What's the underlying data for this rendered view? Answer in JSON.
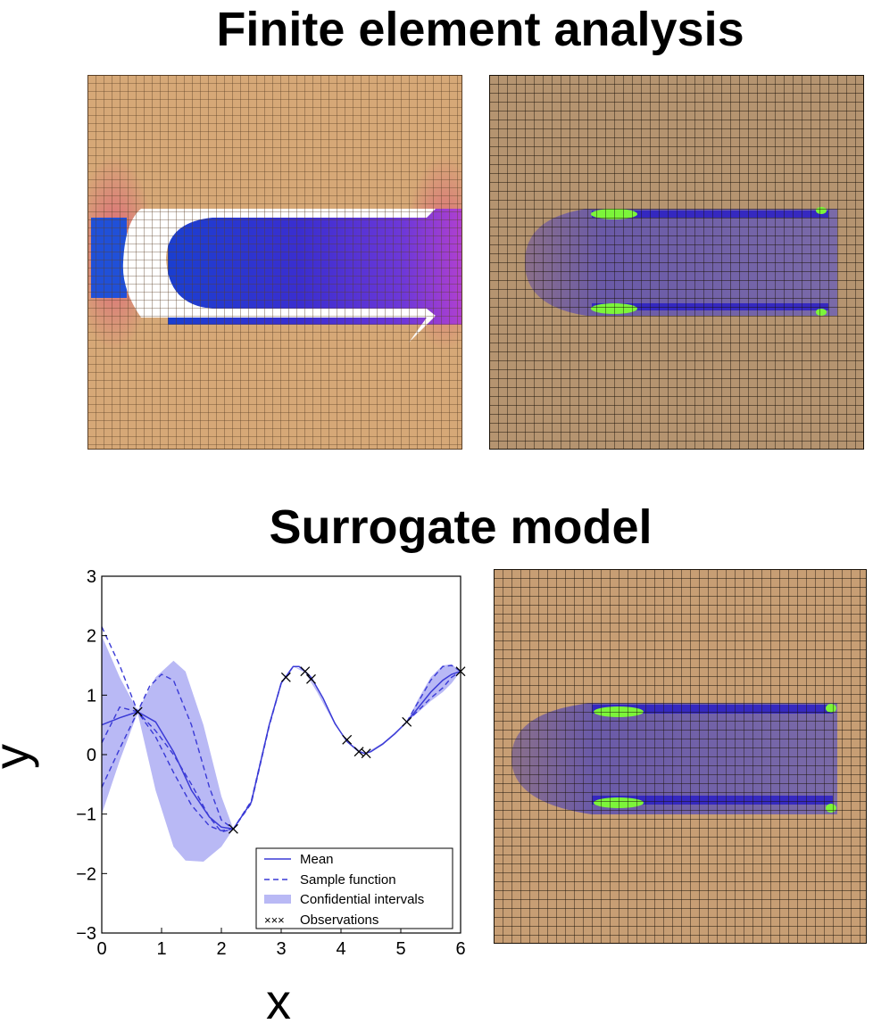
{
  "titles": {
    "fea": "Finite element analysis",
    "surrogate": "Surrogate model"
  },
  "panels": {
    "mesh_base_color": "#d6a877",
    "mesh_line_color": "#5a3f26",
    "stress_low_color": "#2a1fc4",
    "stress_mid_color": "#a43fd8",
    "stress_edge_color": "#e0407a",
    "hotspot_color": "#7cf53a"
  },
  "chart_data": {
    "type": "line",
    "xlabel": "x",
    "ylabel": "y",
    "xlim": [
      0,
      6
    ],
    "ylim": [
      -3,
      3
    ],
    "xticks": [
      "0",
      "1",
      "2",
      "3",
      "4",
      "5",
      "6"
    ],
    "yticks": [
      "−3",
      "−2",
      "−1",
      "0",
      "1",
      "2",
      "3"
    ],
    "legend": {
      "position": "bottom-right",
      "entries": [
        "Mean",
        "Sample function",
        "Confidential intervals",
        "Observations"
      ]
    },
    "colors": {
      "mean": "#3a3ad6",
      "sample": "#3a3ad6",
      "band": "#b9b9f5",
      "obs": "#000000"
    },
    "mean": {
      "x": [
        0,
        0.3,
        0.6,
        0.9,
        1.2,
        1.5,
        1.8,
        2.0,
        2.2,
        2.5,
        2.8,
        3.0,
        3.2,
        3.3,
        3.4,
        3.5,
        3.7,
        3.9,
        4.1,
        4.3,
        4.4,
        4.5,
        4.7,
        4.9,
        5.1,
        5.3,
        5.5,
        5.7,
        5.85,
        6.0
      ],
      "y": [
        0.5,
        0.62,
        0.72,
        0.55,
        0.05,
        -0.6,
        -1.05,
        -1.22,
        -1.25,
        -0.8,
        0.5,
        1.2,
        1.48,
        1.48,
        1.4,
        1.3,
        0.95,
        0.52,
        0.22,
        0.05,
        0.02,
        0.05,
        0.18,
        0.35,
        0.55,
        0.8,
        1.05,
        1.25,
        1.35,
        1.4
      ]
    },
    "band_upper": {
      "x": [
        0,
        0.3,
        0.6,
        0.9,
        1.2,
        1.4,
        1.7,
        2.0,
        2.2,
        2.5,
        2.8,
        3.0,
        3.2,
        3.4,
        3.6,
        3.9,
        4.1,
        4.4,
        4.7,
        5.1,
        5.3,
        5.5,
        5.7,
        5.85,
        6.0
      ],
      "y": [
        2.0,
        1.3,
        0.74,
        1.3,
        1.58,
        1.4,
        0.5,
        -0.7,
        -1.25,
        -0.78,
        0.52,
        1.2,
        1.48,
        1.42,
        1.1,
        0.55,
        0.22,
        0.02,
        0.2,
        0.55,
        0.95,
        1.3,
        1.5,
        1.52,
        1.4
      ]
    },
    "band_lower": {
      "x": [
        0,
        0.3,
        0.6,
        0.9,
        1.2,
        1.4,
        1.7,
        2.0,
        2.2,
        2.5,
        2.8,
        3.0,
        3.2,
        3.4,
        3.6,
        3.9,
        4.1,
        4.4,
        4.7,
        5.1,
        5.3,
        5.5,
        5.7,
        5.85,
        6.0
      ],
      "y": [
        -1.0,
        -0.1,
        0.7,
        -0.6,
        -1.55,
        -1.78,
        -1.8,
        -1.55,
        -1.25,
        -0.82,
        0.48,
        1.2,
        1.48,
        1.38,
        1.05,
        0.5,
        0.22,
        0.0,
        0.16,
        0.55,
        0.72,
        0.9,
        1.05,
        1.2,
        1.4
      ]
    },
    "samples": [
      {
        "x": [
          0,
          0.3,
          0.6,
          0.9,
          1.2,
          1.5,
          1.8,
          2.0,
          2.2,
          2.5,
          2.8,
          3.0,
          3.2
        ],
        "y": [
          2.15,
          1.5,
          0.72,
          0.4,
          0.0,
          -0.5,
          -1.05,
          -1.3,
          -1.25,
          -0.78,
          0.5,
          1.2,
          1.48
        ]
      },
      {
        "x": [
          0,
          0.3,
          0.6,
          0.8,
          1.0,
          1.2,
          1.5,
          1.8,
          2.0,
          2.2,
          2.5,
          2.8,
          3.0,
          3.2
        ],
        "y": [
          -0.55,
          0.1,
          0.72,
          1.15,
          1.35,
          1.25,
          0.5,
          -0.55,
          -1.1,
          -1.25,
          -0.82,
          0.48,
          1.2,
          1.48
        ]
      },
      {
        "x": [
          0,
          0.3,
          0.6,
          0.9,
          1.2,
          1.5,
          1.8,
          2.0,
          2.2
        ],
        "y": [
          0.2,
          0.8,
          0.72,
          0.3,
          -0.3,
          -0.85,
          -1.2,
          -1.28,
          -1.25
        ]
      },
      {
        "x": [
          5.1,
          5.3,
          5.5,
          5.7,
          5.85,
          6.0
        ],
        "y": [
          0.55,
          0.9,
          1.25,
          1.48,
          1.5,
          1.4
        ]
      },
      {
        "x": [
          5.1,
          5.3,
          5.5,
          5.7,
          5.85,
          6.0
        ],
        "y": [
          0.55,
          0.75,
          0.95,
          1.12,
          1.3,
          1.4
        ]
      }
    ],
    "observations": {
      "x": [
        0.6,
        2.2,
        3.08,
        3.4,
        3.5,
        4.1,
        4.3,
        4.42,
        5.1,
        6.0
      ],
      "y": [
        0.72,
        -1.25,
        1.3,
        1.4,
        1.27,
        0.25,
        0.05,
        0.02,
        0.55,
        1.4
      ]
    }
  }
}
